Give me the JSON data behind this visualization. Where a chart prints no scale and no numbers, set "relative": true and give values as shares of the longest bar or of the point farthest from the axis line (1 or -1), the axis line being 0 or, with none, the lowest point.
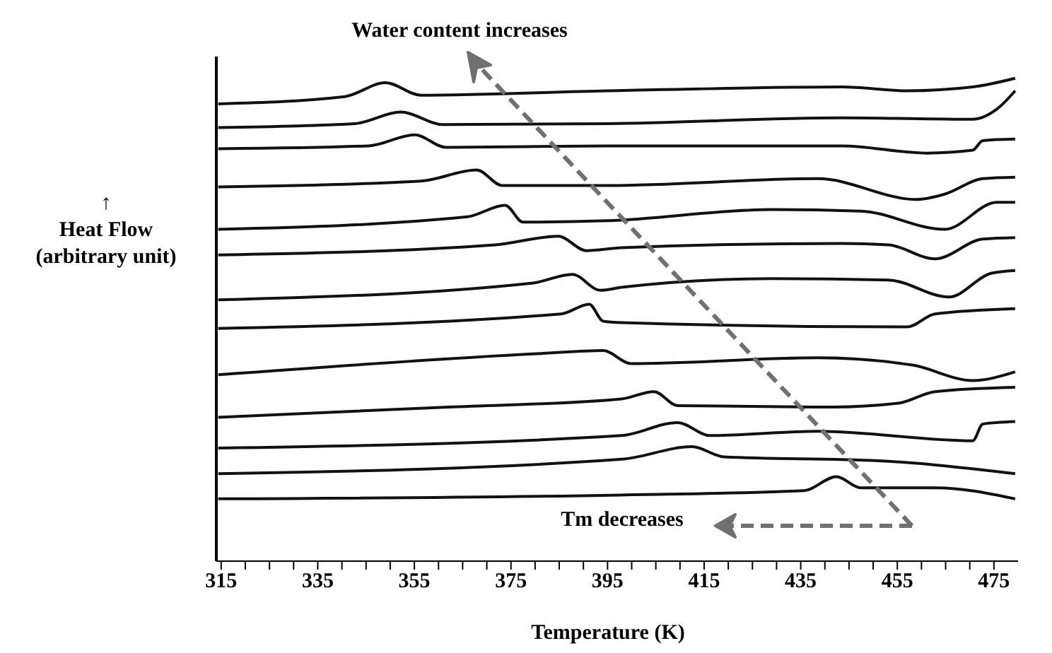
{
  "chart_data": {
    "type": "line",
    "relative": true,
    "xlabel": "Temperature (K)",
    "ylabel": "↑\nHeat Flow\n(arbitrary  unit)",
    "annotations": [
      "Water content increases",
      "Tm decreases"
    ],
    "xlim": [
      314,
      480
    ],
    "xticks": [
      315,
      {
        "value": 320,
        "label": null
      },
      {
        "value": 325,
        "label": null
      },
      {
        "value": 330,
        "label": null
      },
      335,
      {
        "value": 340,
        "label": null
      },
      {
        "value": 345,
        "label": null
      },
      {
        "value": 350,
        "label": null
      },
      355,
      {
        "value": 360,
        "label": null
      },
      {
        "value": 365,
        "label": null
      },
      {
        "value": 370,
        "label": null
      },
      375,
      {
        "value": 380,
        "label": null
      },
      {
        "value": 385,
        "label": null
      },
      {
        "value": 390,
        "label": null
      },
      395,
      {
        "value": 400,
        "label": null
      },
      {
        "value": 405,
        "label": null
      },
      {
        "value": 410,
        "label": null
      },
      415,
      {
        "value": 420,
        "label": null
      },
      {
        "value": 425,
        "label": null
      },
      {
        "value": 430,
        "label": null
      },
      435,
      {
        "value": 440,
        "label": null
      },
      {
        "value": 445,
        "label": null
      },
      {
        "value": 450,
        "label": null
      },
      455,
      {
        "value": 460,
        "label": null
      },
      {
        "value": 465,
        "label": null
      },
      {
        "value": 470,
        "label": null
      },
      475
    ],
    "marker": "none",
    "line_style": "solid",
    "series": [
      {
        "color": "#111111",
        "x": [
          314.4,
          340.6,
          349.0,
          356.3,
          395.0,
          443.6,
          457.0,
          470.6,
          479.4
        ],
        "values": [
          0.947,
          0.962,
          0.991,
          0.965,
          0.974,
          0.982,
          0.974,
          0.982,
          1.0
        ]
      },
      {
        "color": "#111111",
        "x": [
          314.4,
          342.6,
          352.2,
          361.0,
          395.0,
          443.6,
          470.6,
          475.6,
          479.4
        ],
        "values": [
          0.898,
          0.906,
          0.93,
          0.904,
          0.906,
          0.918,
          0.915,
          0.936,
          0.974
        ]
      },
      {
        "color": "#111111",
        "x": [
          314.4,
          345.5,
          355.1,
          361.5,
          395.0,
          443.6,
          461.0,
          470.6,
          472.7,
          479.4
        ],
        "values": [
          0.854,
          0.86,
          0.883,
          0.857,
          0.86,
          0.86,
          0.845,
          0.851,
          0.871,
          0.874
        ]
      },
      {
        "color": "#111111",
        "x": [
          314.4,
          356.3,
          367.9,
          373.2,
          395.0,
          438.6,
          459.0,
          464.8,
          472.7,
          479.4
        ],
        "values": [
          0.775,
          0.787,
          0.81,
          0.778,
          0.778,
          0.792,
          0.749,
          0.76,
          0.792,
          0.795
        ]
      },
      {
        "color": "#111111",
        "x": [
          314.4,
          365.9,
          373.8,
          377.5,
          395.0,
          429.0,
          447.4,
          464.8,
          475.6,
          479.4
        ],
        "values": [
          0.687,
          0.713,
          0.737,
          0.702,
          0.705,
          0.728,
          0.725,
          0.687,
          0.743,
          0.743
        ]
      },
      {
        "color": "#111111",
        "x": [
          314.4,
          371.7,
          384.8,
          390.6,
          397.9,
          443.6,
          453.2,
          462.8,
          472.7,
          479.4
        ],
        "values": [
          0.634,
          0.655,
          0.673,
          0.643,
          0.649,
          0.658,
          0.655,
          0.626,
          0.667,
          0.67
        ]
      },
      {
        "color": "#111111",
        "x": [
          314.4,
          379.6,
          387.7,
          393.5,
          397.9,
          429.0,
          453.2,
          465.7,
          474.4,
          479.4
        ],
        "values": [
          0.541,
          0.576,
          0.594,
          0.561,
          0.567,
          0.585,
          0.582,
          0.547,
          0.596,
          0.602
        ]
      },
      {
        "color": "#111111",
        "x": [
          314.4,
          385.4,
          391.2,
          394.1,
          397.9,
          457.0,
          462.8,
          479.4
        ],
        "values": [
          0.482,
          0.512,
          0.532,
          0.497,
          0.494,
          0.485,
          0.512,
          0.523
        ]
      },
      {
        "color": "#111111",
        "x": [
          314.4,
          381.3,
          394.1,
          399.9,
          438.6,
          458.1,
          470.6,
          479.4
        ],
        "values": [
          0.386,
          0.43,
          0.436,
          0.409,
          0.421,
          0.406,
          0.374,
          0.392
        ]
      },
      {
        "color": "#111111",
        "x": [
          314.4,
          362.1,
          397.9,
          404.6,
          409.5,
          441.5,
          455.2,
          462.8,
          479.4
        ],
        "values": [
          0.298,
          0.319,
          0.336,
          0.351,
          0.322,
          0.319,
          0.327,
          0.351,
          0.36
        ]
      },
      {
        "color": "#111111",
        "x": [
          314.4,
          397.9,
          409.5,
          416.2,
          438.6,
          470.6,
          472.7,
          479.4
        ],
        "values": [
          0.234,
          0.26,
          0.287,
          0.26,
          0.269,
          0.249,
          0.284,
          0.289
        ]
      },
      {
        "color": "#111111",
        "x": [
          314.4,
          397.9,
          412.5,
          419.1,
          451.1,
          479.4
        ],
        "values": [
          0.181,
          0.211,
          0.237,
          0.216,
          0.208,
          0.181
        ]
      },
      {
        "color": "#111111",
        "x": [
          314.4,
          397.9,
          435.7,
          442.4,
          447.4,
          462.8,
          479.4
        ],
        "values": [
          0.129,
          0.137,
          0.146,
          0.175,
          0.152,
          0.152,
          0.129
        ]
      }
    ]
  }
}
